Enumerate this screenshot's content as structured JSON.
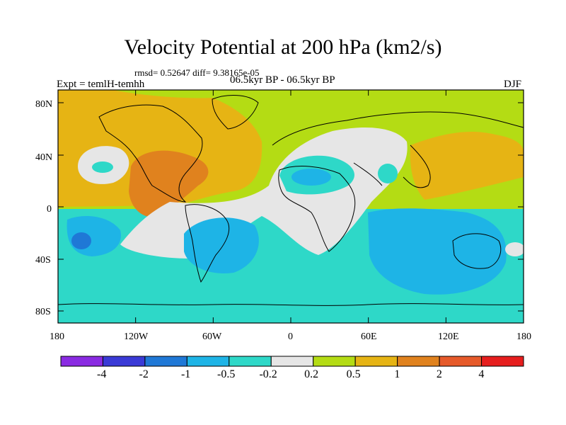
{
  "header": {
    "title": "Velocity Potential at 200 hPa (km2/s)",
    "stats": "rmsd= 0.52647 diff= 9.38165e-05",
    "experiment": "Expt = temlH-temhh",
    "period": "06.5kyr BP - 06.5kyr BP",
    "season": "DJF"
  },
  "axes": {
    "lat_ticks": [
      "80N",
      "40N",
      "0",
      "40S",
      "80S"
    ],
    "lon_ticks": [
      "180",
      "120W",
      "60W",
      "0",
      "60E",
      "120E",
      "180"
    ]
  },
  "colorbar": {
    "labels": [
      "-4",
      "-2",
      "-1",
      "-0.5",
      "-0.2",
      "0.2",
      "0.5",
      "1",
      "2",
      "4"
    ],
    "colors": [
      "#8a2be2",
      "#3a3ad6",
      "#1f78d6",
      "#1eb4e6",
      "#2ed8c8",
      "#e6e6e6",
      "#b4dc14",
      "#e6b414",
      "#e0821e",
      "#e65a2a",
      "#e61e1e"
    ]
  },
  "colors": {
    "land_outline": "#000000",
    "frame": "#000000"
  }
}
